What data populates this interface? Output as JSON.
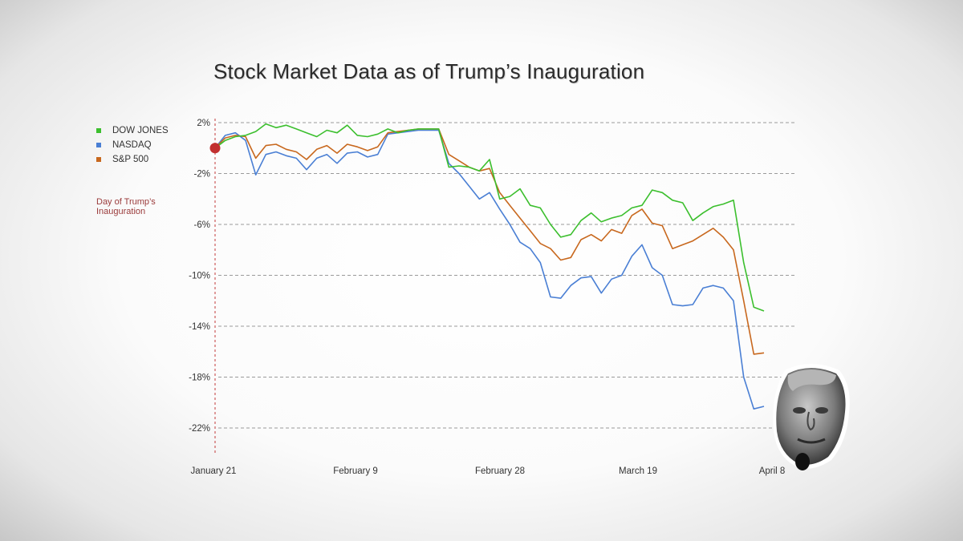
{
  "chart_data": {
    "type": "line",
    "title": "Stock Market Data as of Trump’s Inauguration",
    "xlabel": "",
    "ylabel": "",
    "x": [
      "Jan 21",
      "Jan 22",
      "Jan 23",
      "Jan 24",
      "Jan 27",
      "Jan 28",
      "Jan 29",
      "Jan 30",
      "Jan 31",
      "Feb 3",
      "Feb 4",
      "Feb 5",
      "Feb 6",
      "Feb 7",
      "Feb 10",
      "Feb 11",
      "Feb 12",
      "Feb 13",
      "Feb 14",
      "Feb 18",
      "Feb 19",
      "Feb 20",
      "Feb 21",
      "Feb 24",
      "Feb 25",
      "Feb 26",
      "Feb 27",
      "Feb 28",
      "Mar 3",
      "Mar 4",
      "Mar 5",
      "Mar 6",
      "Mar 7",
      "Mar 10",
      "Mar 11",
      "Mar 12",
      "Mar 13",
      "Mar 14",
      "Mar 17",
      "Mar 18",
      "Mar 19",
      "Mar 20",
      "Mar 21",
      "Mar 24",
      "Mar 25",
      "Mar 26",
      "Mar 27",
      "Mar 28",
      "Mar 31",
      "Apr 1",
      "Apr 2",
      "Apr 3",
      "Apr 4",
      "Apr 7",
      "Apr 8"
    ],
    "x_tick_labels": [
      "January 21",
      "February 9",
      "February 28",
      "March 19",
      "April 8"
    ],
    "y_tick_labels": [
      "2%",
      "-2%",
      "-6%",
      "-10%",
      "-14%",
      "-18%",
      "-22%"
    ],
    "ylim": [
      -24,
      2.5
    ],
    "grid": "horizontal dashed",
    "legend_position": "top-left",
    "series": [
      {
        "name": "DOW JONES",
        "color": "#3cbf2e",
        "values": [
          0,
          0.6,
          0.9,
          1.0,
          1.3,
          1.9,
          1.6,
          1.8,
          1.5,
          1.2,
          0.9,
          1.4,
          1.2,
          1.8,
          1.0,
          0.9,
          1.1,
          1.5,
          1.2,
          1.4,
          1.5,
          1.5,
          1.5,
          -1.5,
          -1.4,
          -1.5,
          -1.8,
          -0.9,
          -4.0,
          -3.8,
          -3.2,
          -4.5,
          -4.7,
          -6.0,
          -7.0,
          -6.8,
          -5.7,
          -5.1,
          -5.8,
          -5.5,
          -5.3,
          -4.7,
          -4.5,
          -3.3,
          -3.5,
          -4.1,
          -4.3,
          -5.7,
          -5.1,
          -4.6,
          -4.4,
          -4.1,
          -9.0,
          -12.5,
          -12.8
        ]
      },
      {
        "name": "NASDAQ",
        "color": "#4a7fd4",
        "values": [
          0,
          1.0,
          1.2,
          0.6,
          -2.1,
          -0.5,
          -0.3,
          -0.6,
          -0.8,
          -1.7,
          -0.8,
          -0.5,
          -1.2,
          -0.4,
          -0.3,
          -0.7,
          -0.5,
          1.1,
          1.2,
          1.3,
          1.4,
          1.4,
          1.4,
          -1.2,
          -2.0,
          -3.0,
          -4.0,
          -3.5,
          -4.8,
          -6.0,
          -7.4,
          -7.9,
          -9.0,
          -11.7,
          -11.8,
          -10.8,
          -10.2,
          -10.1,
          -11.4,
          -10.3,
          -10.0,
          -8.5,
          -7.6,
          -9.4,
          -10.0,
          -12.3,
          -12.4,
          -12.3,
          -11.0,
          -10.8,
          -11.0,
          -12.0,
          -18.0,
          -20.5,
          -20.3
        ]
      },
      {
        "name": "S&P 500",
        "color": "#c8681e",
        "values": [
          0,
          0.8,
          1.0,
          0.9,
          -0.8,
          0.2,
          0.3,
          -0.1,
          -0.3,
          -0.9,
          -0.1,
          0.2,
          -0.4,
          0.3,
          0.1,
          -0.2,
          0.1,
          1.2,
          1.3,
          1.4,
          1.5,
          1.5,
          1.5,
          -0.5,
          -1.0,
          -1.5,
          -1.8,
          -1.6,
          -3.5,
          -4.5,
          -5.5,
          -6.5,
          -7.5,
          -7.9,
          -8.8,
          -8.6,
          -7.2,
          -6.8,
          -7.3,
          -6.4,
          -6.7,
          -5.3,
          -4.8,
          -5.9,
          -6.1,
          -7.9,
          -7.6,
          -7.3,
          -6.8,
          -6.3,
          -7.0,
          -8.0,
          -12.0,
          -16.2,
          -16.1
        ]
      }
    ],
    "annotation": "Day of Trump’s Inauguration",
    "annotation_color": "#9a3a3a"
  }
}
